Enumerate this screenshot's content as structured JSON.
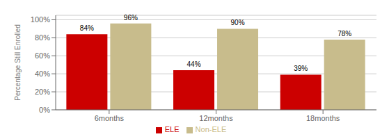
{
  "chart_data": {
    "type": "bar",
    "categories": [
      "6months",
      "12months",
      "18months"
    ],
    "series": [
      {
        "name": "ELE",
        "color": "#CC0000",
        "values": [
          84,
          44,
          39
        ],
        "value_labels": [
          "84%",
          "44%",
          "39%"
        ]
      },
      {
        "name": "Non-ELE",
        "color": "#C8BC8C",
        "values": [
          96,
          90,
          78
        ],
        "value_labels": [
          "96%",
          "90%",
          "78%"
        ]
      }
    ],
    "ylabel": "Percentage Still Enrolled",
    "ylim": [
      0,
      105
    ],
    "yticks": [
      {
        "value": 0,
        "label": "0%"
      },
      {
        "value": 20,
        "label": "20%"
      },
      {
        "value": 40,
        "label": "40%"
      },
      {
        "value": 60,
        "label": "60%"
      },
      {
        "value": 80,
        "label": "80%"
      },
      {
        "value": 100,
        "label": "100%"
      }
    ],
    "grid": true,
    "legend": "bottom",
    "data_labels": true
  }
}
